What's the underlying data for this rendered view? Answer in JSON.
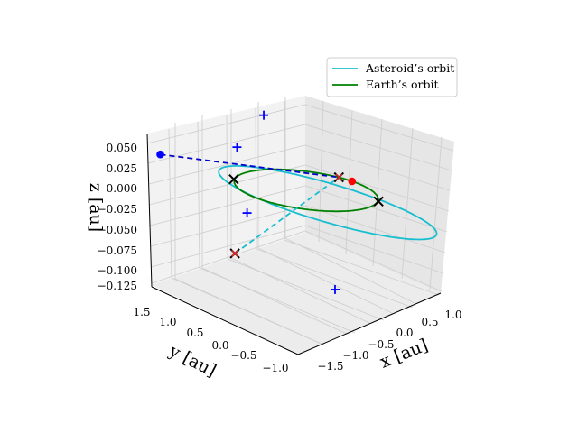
{
  "chart_data": {
    "type": "line",
    "projection": "3d",
    "legend": {
      "placement": "top-right",
      "entries": [
        {
          "label": "Asteroid’s orbit",
          "color": "#17becf"
        },
        {
          "label": "Earth’s orbit",
          "color": "#008000"
        }
      ]
    },
    "axes": {
      "x": {
        "label": "x [au]",
        "ticks": [
          "−1.5",
          "−1.0",
          "−0.5",
          "0.0",
          "0.5",
          "1.0"
        ],
        "range": [
          -1.85,
          1.25
        ]
      },
      "y": {
        "label": "y [au]",
        "ticks": [
          "1.5",
          "1.0",
          "0.5",
          "0.0",
          "−0.5",
          "−1.0"
        ],
        "range": [
          -1.25,
          1.75
        ]
      },
      "z": {
        "label": "z [au]",
        "ticks": [
          "0.050",
          "0.025",
          "0.000",
          "−0.025",
          "−0.050",
          "−0.075",
          "−0.100",
          "−0.125"
        ],
        "range": [
          -0.133,
          0.058
        ]
      }
    },
    "grid": true,
    "series": [
      {
        "name": "Asteroid’s orbit",
        "color": "#17becf",
        "orbit": {
          "semi_major_axis_au": 1.6,
          "eccentricity": 0.37,
          "inclination_deg": 3.6,
          "ascending_node_deg": 70,
          "argument_of_perihelion_deg": 0
        }
      },
      {
        "name": "Earth’s orbit",
        "color": "#008000",
        "orbit": {
          "semi_major_axis_au": 1.0,
          "eccentricity": 0.0,
          "inclination_deg": 0
        }
      }
    ],
    "markers": [
      {
        "kind": "red-dot",
        "x": 1.0,
        "y": 0.0,
        "z": 0.0
      },
      {
        "kind": "blue-dot",
        "x": -1.39,
        "y": 1.48,
        "z": 0.026
      },
      {
        "kind": "black-x",
        "x": -0.55,
        "y": 0.85,
        "z": 0.0
      },
      {
        "kind": "black-x",
        "x": 0.55,
        "y": -0.85,
        "z": 0.0
      },
      {
        "kind": "black-x",
        "x": 0.98,
        "y": 0.22,
        "z": 0.0
      },
      {
        "kind": "black-x",
        "x": -0.84,
        "y": 0.59,
        "z": -0.085
      },
      {
        "kind": "red-x",
        "x": -0.84,
        "y": 0.59,
        "z": -0.085
      },
      {
        "kind": "red-x",
        "x": 0.98,
        "y": 0.22,
        "z": 0.0
      },
      {
        "kind": "blue-plus",
        "x": -0.48,
        "y": 0.85,
        "z": 0.04
      },
      {
        "kind": "blue-plus",
        "x": -0.78,
        "y": 0.42,
        "z": -0.03
      },
      {
        "kind": "blue-plus",
        "x": -0.12,
        "y": -0.62,
        "z": -0.11
      },
      {
        "kind": "blue-plus",
        "x": 0.55,
        "y": 1.22,
        "z": 0.06
      }
    ],
    "connectors": [
      {
        "style": "dashed",
        "color": "#0000cc",
        "from": [
          -1.39,
          1.48,
          0.026
        ],
        "to": [
          0.98,
          0.22,
          0.0
        ]
      },
      {
        "style": "dashed",
        "color": "#17becf",
        "from": [
          -0.84,
          0.59,
          -0.085
        ],
        "to": [
          0.98,
          0.22,
          0.0
        ]
      }
    ]
  }
}
